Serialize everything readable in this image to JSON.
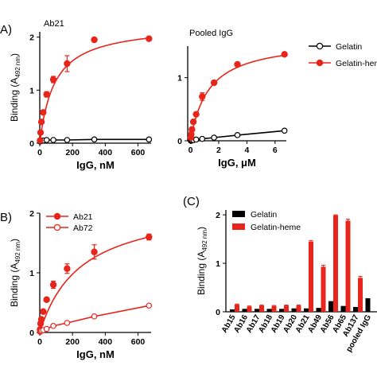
{
  "panels": {
    "A": {
      "letter": "A)"
    },
    "B": {
      "letter": "B)"
    },
    "C": {
      "letter": "(C)"
    }
  },
  "y_label": {
    "main": "Binding (A",
    "sub": "492 nm",
    "close": ")"
  },
  "chart_data": [
    {
      "id": "A1",
      "type": "line",
      "title": "Ab21",
      "xlabel": "IgG, nM",
      "ylabel": "Binding (A492 nm)",
      "xlim": [
        0,
        680
      ],
      "ylim": [
        0,
        2.1
      ],
      "xticks": [
        0,
        200,
        400,
        600
      ],
      "yticks": [
        0,
        1,
        2
      ],
      "grid": false,
      "series": [
        {
          "name": "Gelatin",
          "color": "#000000",
          "marker": "open-circle",
          "x": [
            2,
            5,
            10,
            21,
            42,
            83,
            167,
            333,
            667
          ],
          "y": [
            0.03,
            0.04,
            0.05,
            0.05,
            0.06,
            0.06,
            0.06,
            0.07,
            0.07
          ]
        },
        {
          "name": "Gelatin-heme",
          "color": "#e8251b",
          "marker": "filled-circle",
          "x": [
            2,
            5,
            10,
            21,
            42,
            83,
            167,
            333,
            667
          ],
          "y": [
            0.05,
            0.2,
            0.4,
            0.58,
            0.92,
            1.2,
            1.5,
            1.95,
            1.97
          ],
          "err": [
            0,
            0,
            0,
            0,
            0.05,
            0.06,
            0.15,
            0,
            0
          ],
          "fit": {
            "model": "hyperbola",
            "bmax": 2.25,
            "kd": 90
          }
        }
      ]
    },
    {
      "id": "A2",
      "type": "line",
      "title": "Pooled IgG",
      "xlabel": "IgG, μM",
      "ylabel": "",
      "xlim": [
        -0.2,
        6.8
      ],
      "ylim": [
        0,
        1.5
      ],
      "xticks": [
        0,
        2,
        4,
        6
      ],
      "yticks": [
        0,
        1
      ],
      "grid": false,
      "series": [
        {
          "name": "Gelatin",
          "color": "#000000",
          "marker": "open-circle",
          "x": [
            0.02,
            0.05,
            0.1,
            0.2,
            0.4,
            0.83,
            1.67,
            3.33,
            6.67
          ],
          "y": [
            0.0,
            0.0,
            0.01,
            0.01,
            0.02,
            0.03,
            0.05,
            0.09,
            0.16
          ]
        },
        {
          "name": "Gelatin-heme",
          "color": "#e8251b",
          "marker": "filled-circle",
          "x": [
            0.02,
            0.05,
            0.1,
            0.2,
            0.4,
            0.83,
            1.67,
            3.33,
            6.67
          ],
          "y": [
            0.05,
            0.1,
            0.18,
            0.3,
            0.42,
            0.7,
            0.92,
            1.21,
            1.37
          ],
          "err": [
            0,
            0,
            0,
            0,
            0,
            0.06,
            0,
            0,
            0
          ],
          "fit": {
            "model": "hyperbola",
            "bmax": 1.62,
            "kd": 1.3
          }
        }
      ],
      "legend": {
        "placement": "right",
        "entries": [
          "Gelatin",
          "Gelatin-heme"
        ]
      }
    },
    {
      "id": "B",
      "type": "line",
      "xlabel": "IgG, nM",
      "ylabel": "Binding (A492 nm)",
      "xlim": [
        0,
        680
      ],
      "ylim": [
        0,
        2
      ],
      "xticks": [
        0,
        200,
        400,
        600
      ],
      "yticks": [
        0,
        1,
        2
      ],
      "grid": false,
      "series": [
        {
          "name": "Ab21",
          "color": "#e8251b",
          "marker": "filled-circle",
          "x": [
            2,
            5,
            10,
            21,
            42,
            83,
            167,
            333,
            667
          ],
          "y": [
            0.05,
            0.15,
            0.22,
            0.35,
            0.55,
            0.8,
            1.07,
            1.35,
            1.6
          ],
          "err": [
            0,
            0,
            0,
            0,
            0,
            0.06,
            0.08,
            0.12,
            0.05
          ],
          "fit": {
            "model": "hyperbola",
            "bmax": 2.2,
            "kd": 250
          }
        },
        {
          "name": "Ab72",
          "color": "#e8251b",
          "marker": "open-circle",
          "x": [
            2,
            5,
            10,
            21,
            42,
            83,
            167,
            333,
            667
          ],
          "y": [
            0.01,
            0.02,
            0.03,
            0.04,
            0.06,
            0.11,
            0.16,
            0.27,
            0.45
          ],
          "fit": {
            "model": "linear"
          }
        }
      ],
      "legend": {
        "placement": "top-left",
        "entries": [
          "Ab21",
          "Ab72"
        ]
      }
    },
    {
      "id": "C",
      "type": "bar",
      "ylabel": "Binding (A492 nm)",
      "ylim": [
        0,
        2.1
      ],
      "yticks": [
        0,
        1,
        2
      ],
      "grid": false,
      "categories": [
        "Ab15",
        "Ab16",
        "Ab17",
        "Ab18",
        "Ab19",
        "Ab20",
        "Ab21",
        "Ab49",
        "Ab56",
        "Ab65",
        "Ab137",
        "pooled IgG"
      ],
      "series": [
        {
          "name": "Gelatin",
          "color": "#000000",
          "values": [
            0.05,
            0.06,
            0.06,
            0.06,
            0.06,
            0.07,
            0.07,
            0.08,
            0.22,
            0.12,
            0.1,
            0.28
          ]
        },
        {
          "name": "Gelatin-heme",
          "color": "#e8251b",
          "values": [
            0.15,
            0.11,
            0.13,
            0.12,
            0.13,
            0.13,
            1.45,
            0.93,
            1.99,
            1.88,
            0.7,
            0.0
          ],
          "err": [
            0.01,
            0.01,
            0.01,
            0.01,
            0.01,
            0.01,
            0.02,
            0.03,
            0.01,
            0.03,
            0.03,
            0
          ]
        }
      ],
      "legend": {
        "placement": "top-left",
        "entries": [
          "Gelatin",
          "Gelatin-heme"
        ]
      }
    }
  ]
}
